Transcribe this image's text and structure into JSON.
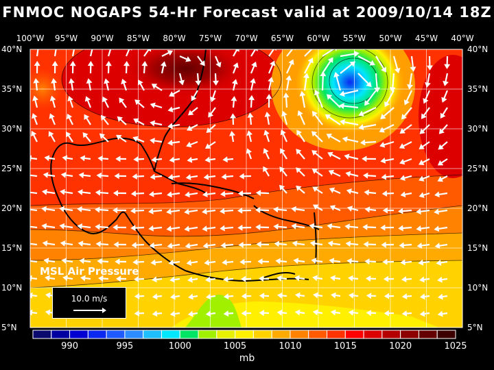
{
  "title": "FNMOC NOGAPS 54-Hr Forecast valid at 2009/10/14 18Z",
  "lon_labels": [
    "100°W",
    "95°W",
    "90°W",
    "85°W",
    "80°W",
    "75°W",
    "70°W",
    "65°W",
    "60°W",
    "55°W",
    "50°W",
    "45°W",
    "40°W"
  ],
  "lat_labels": [
    "40°N",
    "35°N",
    "30°N",
    "25°N",
    "20°N",
    "15°N",
    "10°N",
    "5°N"
  ],
  "field_label": "MSL Air Pressure",
  "vector_reference": "10.0 m/s",
  "colorbar": {
    "labels": [
      "990",
      "995",
      "1000",
      "1005",
      "1010",
      "1015",
      "1020",
      "1025"
    ],
    "colors": [
      "#0a0a6e",
      "#0000a0",
      "#0000d2",
      "#0a28f0",
      "#1e5aff",
      "#2d8cff",
      "#1ebeff",
      "#00e6ff",
      "#00e664",
      "#a0f000",
      "#e6f000",
      "#fff000",
      "#ffd200",
      "#ffaa00",
      "#ff8200",
      "#ff5a00",
      "#ff3200",
      "#ff0000",
      "#dc0000",
      "#b40000",
      "#8c0000",
      "#640000",
      "#3c0000"
    ],
    "unit": "mb"
  }
}
